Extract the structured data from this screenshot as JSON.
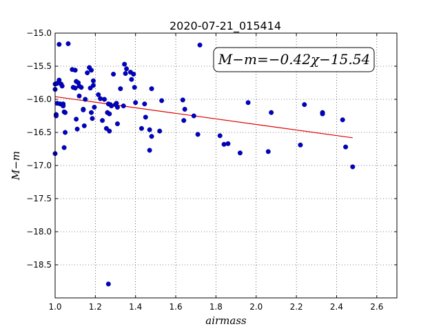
{
  "chart_data": {
    "type": "scatter",
    "title": "2020-07-21_015414",
    "xlabel": "airmass",
    "ylabel": "M−m",
    "xlim": [
      1.0,
      2.7
    ],
    "ylim": [
      -19.0,
      -15.0
    ],
    "y_inverted": true,
    "grid": true,
    "x_ticks": [
      "1.0",
      "1.2",
      "1.4",
      "1.6",
      "1.8",
      "2.0",
      "2.2",
      "2.4",
      "2.6"
    ],
    "y_ticks": [
      "−15.0",
      "−15.5",
      "−16.0",
      "−16.5",
      "−17.0",
      "−17.5",
      "−18.0",
      "−18.5"
    ],
    "annotation": "M−m=−0.42χ−15.54",
    "fit": {
      "slope": -0.42,
      "intercept": -15.54,
      "x_range": [
        1.0,
        2.48
      ],
      "color": "#dd0000"
    },
    "point_color": "#0000cc",
    "points": [
      [
        1.0,
        -16.82
      ],
      [
        1.0,
        -15.77
      ],
      [
        1.0,
        -15.85
      ],
      [
        1.005,
        -16.23
      ],
      [
        1.005,
        -16.25
      ],
      [
        1.01,
        -16.06
      ],
      [
        1.01,
        -15.76
      ],
      [
        1.02,
        -15.17
      ],
      [
        1.02,
        -15.71
      ],
      [
        1.025,
        -16.07
      ],
      [
        1.03,
        -15.77
      ],
      [
        1.035,
        -15.8
      ],
      [
        1.04,
        -16.07
      ],
      [
        1.04,
        -16.1
      ],
      [
        1.045,
        -16.19
      ],
      [
        1.045,
        -16.73
      ],
      [
        1.05,
        -16.5
      ],
      [
        1.05,
        -16.2
      ],
      [
        1.065,
        -15.16
      ],
      [
        1.085,
        -15.55
      ],
      [
        1.09,
        -15.82
      ],
      [
        1.1,
        -15.56
      ],
      [
        1.1,
        -15.83
      ],
      [
        1.105,
        -16.3
      ],
      [
        1.105,
        -15.73
      ],
      [
        1.11,
        -16.45
      ],
      [
        1.115,
        -15.75
      ],
      [
        1.12,
        -15.8
      ],
      [
        1.12,
        -15.95
      ],
      [
        1.13,
        -15.82
      ],
      [
        1.14,
        -16.15
      ],
      [
        1.14,
        -16.16
      ],
      [
        1.145,
        -16.4
      ],
      [
        1.15,
        -16.0
      ],
      [
        1.16,
        -15.6
      ],
      [
        1.17,
        -15.52
      ],
      [
        1.175,
        -15.83
      ],
      [
        1.18,
        -15.56
      ],
      [
        1.18,
        -16.2
      ],
      [
        1.185,
        -16.29
      ],
      [
        1.19,
        -15.79
      ],
      [
        1.19,
        -15.72
      ],
      [
        1.195,
        -16.12
      ],
      [
        1.215,
        -15.93
      ],
      [
        1.225,
        -15.99
      ],
      [
        1.235,
        -16.32
      ],
      [
        1.245,
        -16.0
      ],
      [
        1.255,
        -16.44
      ],
      [
        1.26,
        -16.2
      ],
      [
        1.265,
        -16.07
      ],
      [
        1.27,
        -16.48
      ],
      [
        1.27,
        -16.22
      ],
      [
        1.275,
        -16.08
      ],
      [
        1.28,
        -16.1
      ],
      [
        1.29,
        -15.62
      ],
      [
        1.3,
        -16.08
      ],
      [
        1.305,
        -16.06
      ],
      [
        1.31,
        -16.37
      ],
      [
        1.31,
        -16.12
      ],
      [
        1.325,
        -15.84
      ],
      [
        1.34,
        -16.1
      ],
      [
        1.345,
        -15.47
      ],
      [
        1.35,
        -15.61
      ],
      [
        1.355,
        -15.54
      ],
      [
        1.375,
        -15.59
      ],
      [
        1.38,
        -15.7
      ],
      [
        1.39,
        -15.62
      ],
      [
        1.395,
        -15.82
      ],
      [
        1.4,
        -16.05
      ],
      [
        1.43,
        -16.44
      ],
      [
        1.445,
        -16.07
      ],
      [
        1.45,
        -16.27
      ],
      [
        1.47,
        -16.46
      ],
      [
        1.47,
        -16.77
      ],
      [
        1.48,
        -15.84
      ],
      [
        1.48,
        -16.56
      ],
      [
        1.52,
        -16.48
      ],
      [
        1.53,
        -16.02
      ],
      [
        1.265,
        -18.79
      ],
      [
        1.635,
        -16.01
      ],
      [
        1.64,
        -16.32
      ],
      [
        1.645,
        -16.15
      ],
      [
        1.69,
        -16.25
      ],
      [
        1.71,
        -16.53
      ],
      [
        1.72,
        -15.18
      ],
      [
        1.82,
        -16.55
      ],
      [
        1.84,
        -16.68
      ],
      [
        1.86,
        -16.67
      ],
      [
        1.92,
        -16.81
      ],
      [
        1.96,
        -16.05
      ],
      [
        2.06,
        -16.79
      ],
      [
        2.075,
        -16.2
      ],
      [
        2.22,
        -16.69
      ],
      [
        2.24,
        -16.08
      ],
      [
        2.33,
        -16.2
      ],
      [
        2.33,
        -16.22
      ],
      [
        2.43,
        -16.31
      ],
      [
        2.445,
        -16.72
      ],
      [
        2.48,
        -17.02
      ]
    ]
  }
}
